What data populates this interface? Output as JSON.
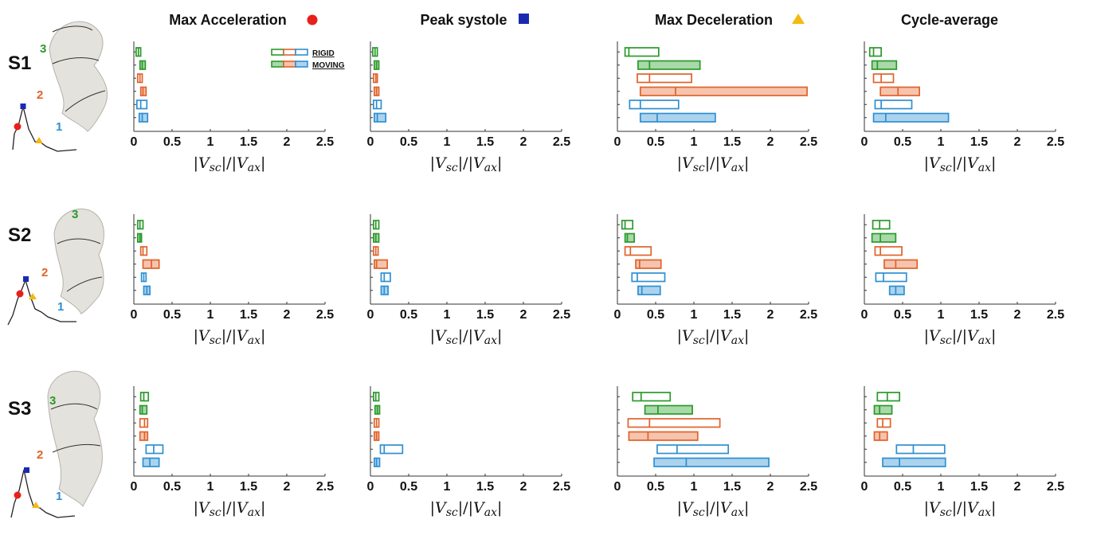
{
  "colors": {
    "green": "#2a9a2a",
    "orange": "#e0622a",
    "blue": "#2e8fd2",
    "green_fill": "#a9d8a9",
    "orange_fill": "#f6c4ae",
    "blue_fill": "#acd3ee",
    "red": "#e8201c",
    "navy": "#1a2ab0",
    "gold": "#f5b914"
  },
  "columns": [
    {
      "title": "Max Acceleration",
      "marker": "red-circle"
    },
    {
      "title": "Peak systole",
      "marker": "blue-square"
    },
    {
      "title": "Max Deceleration",
      "marker": "yellow-triangle"
    },
    {
      "title": "Cycle-average",
      "marker": null
    }
  ],
  "rows": [
    {
      "label": "S1",
      "segments": [
        "3",
        "2",
        "1"
      ]
    },
    {
      "label": "S2",
      "segments": [
        "3",
        "2",
        "1"
      ]
    },
    {
      "label": "S3",
      "segments": [
        "3",
        "2",
        "1"
      ]
    }
  ],
  "legend": {
    "rigid": "RIGID",
    "moving": "MOVING"
  },
  "chart_data": {
    "type": "box",
    "xlabel": "|V_sc|/|V_ax|",
    "xlim": [
      0,
      2.5
    ],
    "xticks": [
      "0",
      "0.5",
      "1",
      "1.5",
      "2",
      "2.5"
    ],
    "series_order": [
      {
        "segment": "3",
        "condition": "RIGID"
      },
      {
        "segment": "3",
        "condition": "MOVING"
      },
      {
        "segment": "2",
        "condition": "RIGID"
      },
      {
        "segment": "2",
        "condition": "MOVING"
      },
      {
        "segment": "1",
        "condition": "RIGID"
      },
      {
        "segment": "1",
        "condition": "MOVING"
      }
    ],
    "panels": [
      {
        "row": "S1",
        "column": "Max Acceleration",
        "boxes": [
          [
            0.03,
            0.06,
            0.09
          ],
          [
            0.08,
            0.11,
            0.15
          ],
          [
            0.05,
            0.08,
            0.11
          ],
          [
            0.09,
            0.12,
            0.16
          ],
          [
            0.04,
            0.09,
            0.17
          ],
          [
            0.07,
            0.11,
            0.18
          ]
        ]
      },
      {
        "row": "S1",
        "column": "Peak systole",
        "boxes": [
          [
            0.03,
            0.06,
            0.09
          ],
          [
            0.05,
            0.08,
            0.11
          ],
          [
            0.04,
            0.07,
            0.09
          ],
          [
            0.05,
            0.08,
            0.11
          ],
          [
            0.04,
            0.08,
            0.14
          ],
          [
            0.05,
            0.09,
            0.2
          ]
        ]
      },
      {
        "row": "S1",
        "column": "Max Deceleration",
        "boxes": [
          [
            0.1,
            0.15,
            0.54
          ],
          [
            0.27,
            0.42,
            1.08
          ],
          [
            0.26,
            0.42,
            0.97
          ],
          [
            0.3,
            0.76,
            2.48
          ],
          [
            0.16,
            0.3,
            0.8
          ],
          [
            0.3,
            0.52,
            1.28
          ]
        ]
      },
      {
        "row": "S1",
        "column": "Cycle-average",
        "boxes": [
          [
            0.07,
            0.12,
            0.22
          ],
          [
            0.1,
            0.17,
            0.42
          ],
          [
            0.12,
            0.22,
            0.38
          ],
          [
            0.21,
            0.44,
            0.72
          ],
          [
            0.14,
            0.22,
            0.62
          ],
          [
            0.12,
            0.28,
            1.1
          ]
        ]
      },
      {
        "row": "S2",
        "column": "Max Acceleration",
        "boxes": [
          [
            0.05,
            0.08,
            0.12
          ],
          [
            0.05,
            0.08,
            0.1
          ],
          [
            0.09,
            0.12,
            0.17
          ],
          [
            0.12,
            0.23,
            0.33
          ],
          [
            0.1,
            0.13,
            0.16
          ],
          [
            0.13,
            0.17,
            0.21
          ]
        ]
      },
      {
        "row": "S2",
        "column": "Peak systole",
        "boxes": [
          [
            0.04,
            0.07,
            0.11
          ],
          [
            0.04,
            0.07,
            0.11
          ],
          [
            0.04,
            0.07,
            0.1
          ],
          [
            0.05,
            0.08,
            0.22
          ],
          [
            0.14,
            0.18,
            0.26
          ],
          [
            0.14,
            0.18,
            0.23
          ]
        ]
      },
      {
        "row": "S2",
        "column": "Max Deceleration",
        "boxes": [
          [
            0.06,
            0.1,
            0.2
          ],
          [
            0.1,
            0.13,
            0.22
          ],
          [
            0.1,
            0.17,
            0.44
          ],
          [
            0.24,
            0.29,
            0.57
          ],
          [
            0.19,
            0.26,
            0.62
          ],
          [
            0.27,
            0.32,
            0.56
          ]
        ]
      },
      {
        "row": "S2",
        "column": "Cycle-average",
        "boxes": [
          [
            0.11,
            0.2,
            0.33
          ],
          [
            0.1,
            0.21,
            0.41
          ],
          [
            0.14,
            0.21,
            0.49
          ],
          [
            0.26,
            0.41,
            0.69
          ],
          [
            0.15,
            0.25,
            0.55
          ],
          [
            0.33,
            0.41,
            0.52
          ]
        ]
      },
      {
        "row": "S3",
        "column": "Max Acceleration",
        "boxes": [
          [
            0.09,
            0.13,
            0.19
          ],
          [
            0.08,
            0.11,
            0.17
          ],
          [
            0.08,
            0.14,
            0.18
          ],
          [
            0.08,
            0.14,
            0.18
          ],
          [
            0.16,
            0.26,
            0.38
          ],
          [
            0.12,
            0.21,
            0.33
          ]
        ]
      },
      {
        "row": "S3",
        "column": "Peak systole",
        "boxes": [
          [
            0.04,
            0.07,
            0.11
          ],
          [
            0.06,
            0.09,
            0.12
          ],
          [
            0.05,
            0.08,
            0.11
          ],
          [
            0.05,
            0.08,
            0.11
          ],
          [
            0.13,
            0.18,
            0.42
          ],
          [
            0.05,
            0.08,
            0.12
          ]
        ]
      },
      {
        "row": "S3",
        "column": "Max Deceleration",
        "boxes": [
          [
            0.2,
            0.31,
            0.69
          ],
          [
            0.36,
            0.53,
            0.98
          ],
          [
            0.14,
            0.42,
            1.34
          ],
          [
            0.15,
            0.4,
            1.05
          ],
          [
            0.52,
            0.78,
            1.45
          ],
          [
            0.48,
            0.9,
            1.98
          ]
        ]
      },
      {
        "row": "S3",
        "column": "Cycle-average",
        "boxes": [
          [
            0.17,
            0.3,
            0.46
          ],
          [
            0.13,
            0.2,
            0.36
          ],
          [
            0.17,
            0.24,
            0.34
          ],
          [
            0.13,
            0.2,
            0.3
          ],
          [
            0.42,
            0.64,
            1.05
          ],
          [
            0.24,
            0.46,
            1.06
          ]
        ]
      }
    ]
  }
}
